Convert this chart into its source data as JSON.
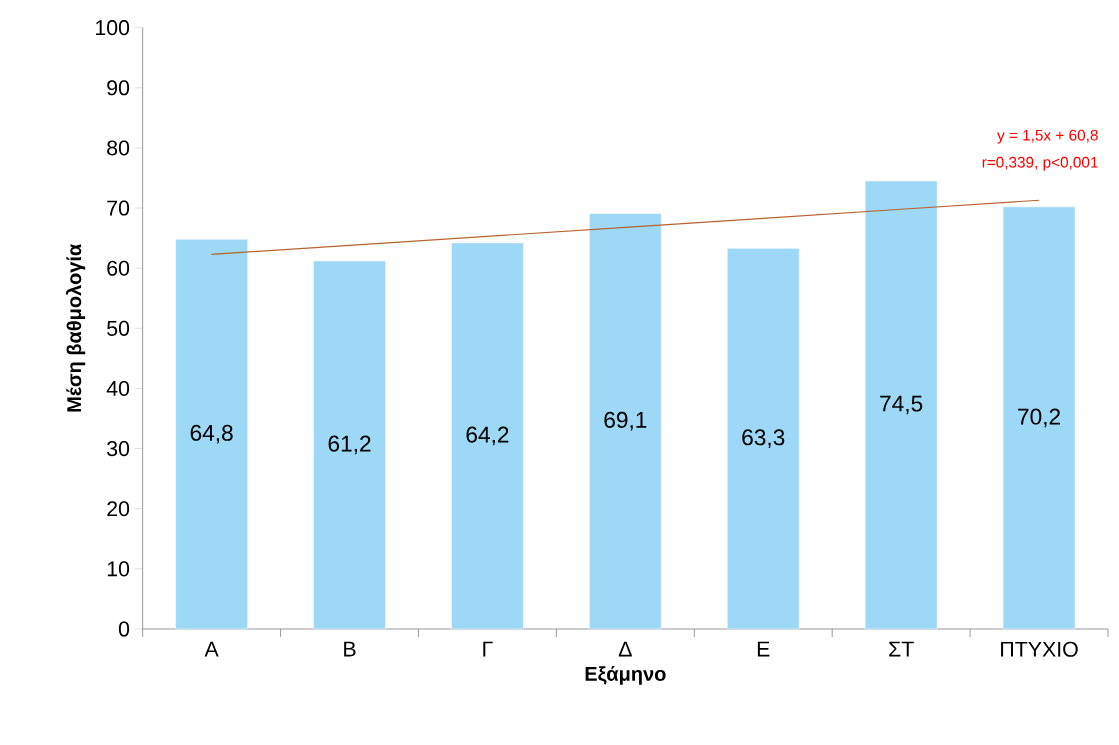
{
  "chart_data": {
    "type": "bar",
    "xlabel": "Εξάμηνο",
    "ylabel": "Μέση βαθμολογία",
    "categories": [
      "Α",
      "Β",
      "Γ",
      "Δ",
      "Ε",
      "ΣΤ",
      "ΠΤΥΧΙΟ"
    ],
    "series": [
      {
        "color": "#9dd8f6",
        "values": [
          64.8,
          61.2,
          64.2,
          69.1,
          63.3,
          74.5,
          70.2
        ],
        "value_labels": [
          "64,8",
          "61,2",
          "64,2",
          "69,1",
          "63,3",
          "74,5",
          "70,2"
        ]
      },
      {
        "type": "line",
        "color": "#b8622e",
        "values": [
          62.3,
          63.8,
          65.3,
          66.8,
          68.3,
          69.8,
          71.3
        ]
      }
    ],
    "ylim": [
      0,
      100
    ],
    "yticks": [
      0,
      10,
      20,
      30,
      40,
      50,
      60,
      70,
      80,
      90,
      100
    ],
    "annotations": [
      "y = 1,5x + 60,8",
      "r=0,339, p<0,001"
    ],
    "grid": false
  }
}
